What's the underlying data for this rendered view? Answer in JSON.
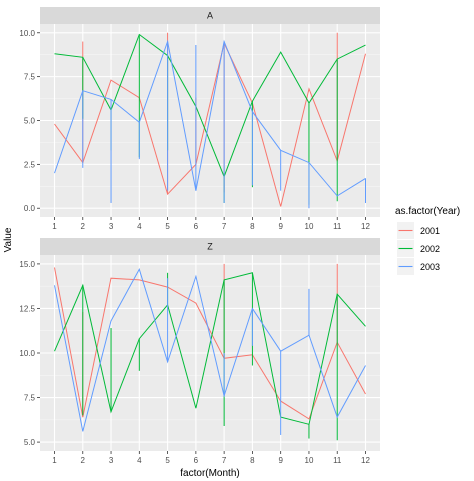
{
  "chart_data": {
    "type": "line",
    "xlabel": "factor(Month)",
    "ylabel": "Value",
    "x_categories": [
      "1",
      "2",
      "3",
      "4",
      "5",
      "6",
      "7",
      "8",
      "9",
      "10",
      "11",
      "12"
    ],
    "legend": {
      "title": "as.factor(Year)",
      "position": "right",
      "items": [
        {
          "label": "2001",
          "color": "#F8766D"
        },
        {
          "label": "2002",
          "color": "#00BA38"
        },
        {
          "label": "2003",
          "color": "#619CFF"
        }
      ]
    },
    "panel_background": "#EBEBEB",
    "strip_background": "#D9D9D9",
    "grid": true,
    "panels": [
      {
        "strip": "A",
        "ylim": [
          -0.5,
          10.5
        ],
        "yticks": [
          0.0,
          2.5,
          5.0,
          7.5,
          10.0
        ],
        "ytick_labels": [
          "0.0",
          "2.5",
          "5.0",
          "7.5",
          "10.0"
        ],
        "series": [
          {
            "name": "2001",
            "values": [
              4.8,
              2.6,
              7.3,
              6.3,
              0.8,
              2.5,
              9.4,
              6.0,
              0.1,
              6.8,
              2.7,
              8.8
            ],
            "lows": [
              4.8,
              2.6,
              7.3,
              6.3,
              0.8,
              2.5,
              0.9,
              6.0,
              0.1,
              6.8,
              2.7,
              8.8
            ],
            "highs": [
              4.8,
              9.5,
              7.3,
              6.3,
              10.0,
              6.3,
              9.4,
              6.0,
              0.1,
              6.8,
              10.0,
              8.8
            ]
          },
          {
            "name": "2002",
            "values": [
              8.8,
              8.6,
              5.6,
              9.9,
              8.7,
              5.8,
              1.8,
              6.1,
              8.9,
              6.0,
              8.5,
              9.3
            ],
            "lows": [
              8.8,
              5.1,
              3.3,
              2.9,
              3.3,
              5.8,
              0.3,
              1.2,
              8.9,
              0.2,
              0.4,
              9.3
            ],
            "highs": [
              8.8,
              8.6,
              5.6,
              9.9,
              8.7,
              5.8,
              1.8,
              6.1,
              8.9,
              6.0,
              8.5,
              9.3
            ]
          },
          {
            "name": "2003",
            "values": [
              2.0,
              6.7,
              6.2,
              4.9,
              9.5,
              1.0,
              9.5,
              5.5,
              3.3,
              2.6,
              0.7,
              1.7
            ],
            "lows": [
              2.0,
              2.3,
              0.3,
              2.8,
              1.0,
              1.0,
              0.3,
              1.3,
              1.0,
              0.0,
              0.7,
              0.3
            ],
            "highs": [
              2.0,
              6.7,
              6.2,
              4.9,
              9.5,
              9.3,
              9.5,
              5.5,
              3.3,
              2.6,
              0.7,
              1.7
            ]
          }
        ]
      },
      {
        "strip": "Z",
        "ylim": [
          4.5,
          15.5
        ],
        "yticks": [
          5.0,
          7.5,
          10.0,
          12.5,
          15.0
        ],
        "ytick_labels": [
          "5.0",
          "7.5",
          "10.0",
          "12.5",
          "15.0"
        ],
        "series": [
          {
            "name": "2001",
            "values": [
              14.8,
              6.4,
              14.2,
              14.1,
              13.7,
              12.8,
              9.7,
              9.9,
              7.3,
              6.3,
              10.6,
              7.7
            ],
            "lows": [
              14.8,
              6.4,
              14.2,
              14.1,
              13.7,
              12.8,
              9.7,
              9.9,
              7.3,
              6.3,
              10.6,
              7.7
            ],
            "highs": [
              14.8,
              12.3,
              14.2,
              14.1,
              13.7,
              12.8,
              15.0,
              9.9,
              7.3,
              6.3,
              15.0,
              7.7
            ]
          },
          {
            "name": "2002",
            "values": [
              10.1,
              13.8,
              6.7,
              10.8,
              12.7,
              6.9,
              14.1,
              14.5,
              6.4,
              6.0,
              13.3,
              11.5
            ],
            "lows": [
              10.1,
              6.5,
              6.7,
              9.0,
              12.7,
              6.9,
              5.9,
              9.3,
              6.4,
              5.2,
              5.1,
              11.5
            ],
            "highs": [
              10.1,
              13.8,
              11.4,
              10.8,
              14.5,
              6.9,
              14.1,
              14.5,
              6.4,
              6.0,
              13.3,
              11.5
            ]
          },
          {
            "name": "2003",
            "values": [
              13.8,
              5.6,
              11.8,
              14.7,
              9.5,
              14.3,
              7.6,
              12.5,
              10.1,
              11.0,
              6.4,
              9.3
            ],
            "lows": [
              13.8,
              5.6,
              11.8,
              14.7,
              9.5,
              14.3,
              7.6,
              10.4,
              5.4,
              11.0,
              6.4,
              9.3
            ],
            "highs": [
              13.8,
              5.6,
              11.8,
              14.7,
              14.2,
              14.3,
              10.0,
              12.5,
              10.1,
              13.6,
              6.4,
              9.3
            ]
          }
        ]
      }
    ]
  }
}
